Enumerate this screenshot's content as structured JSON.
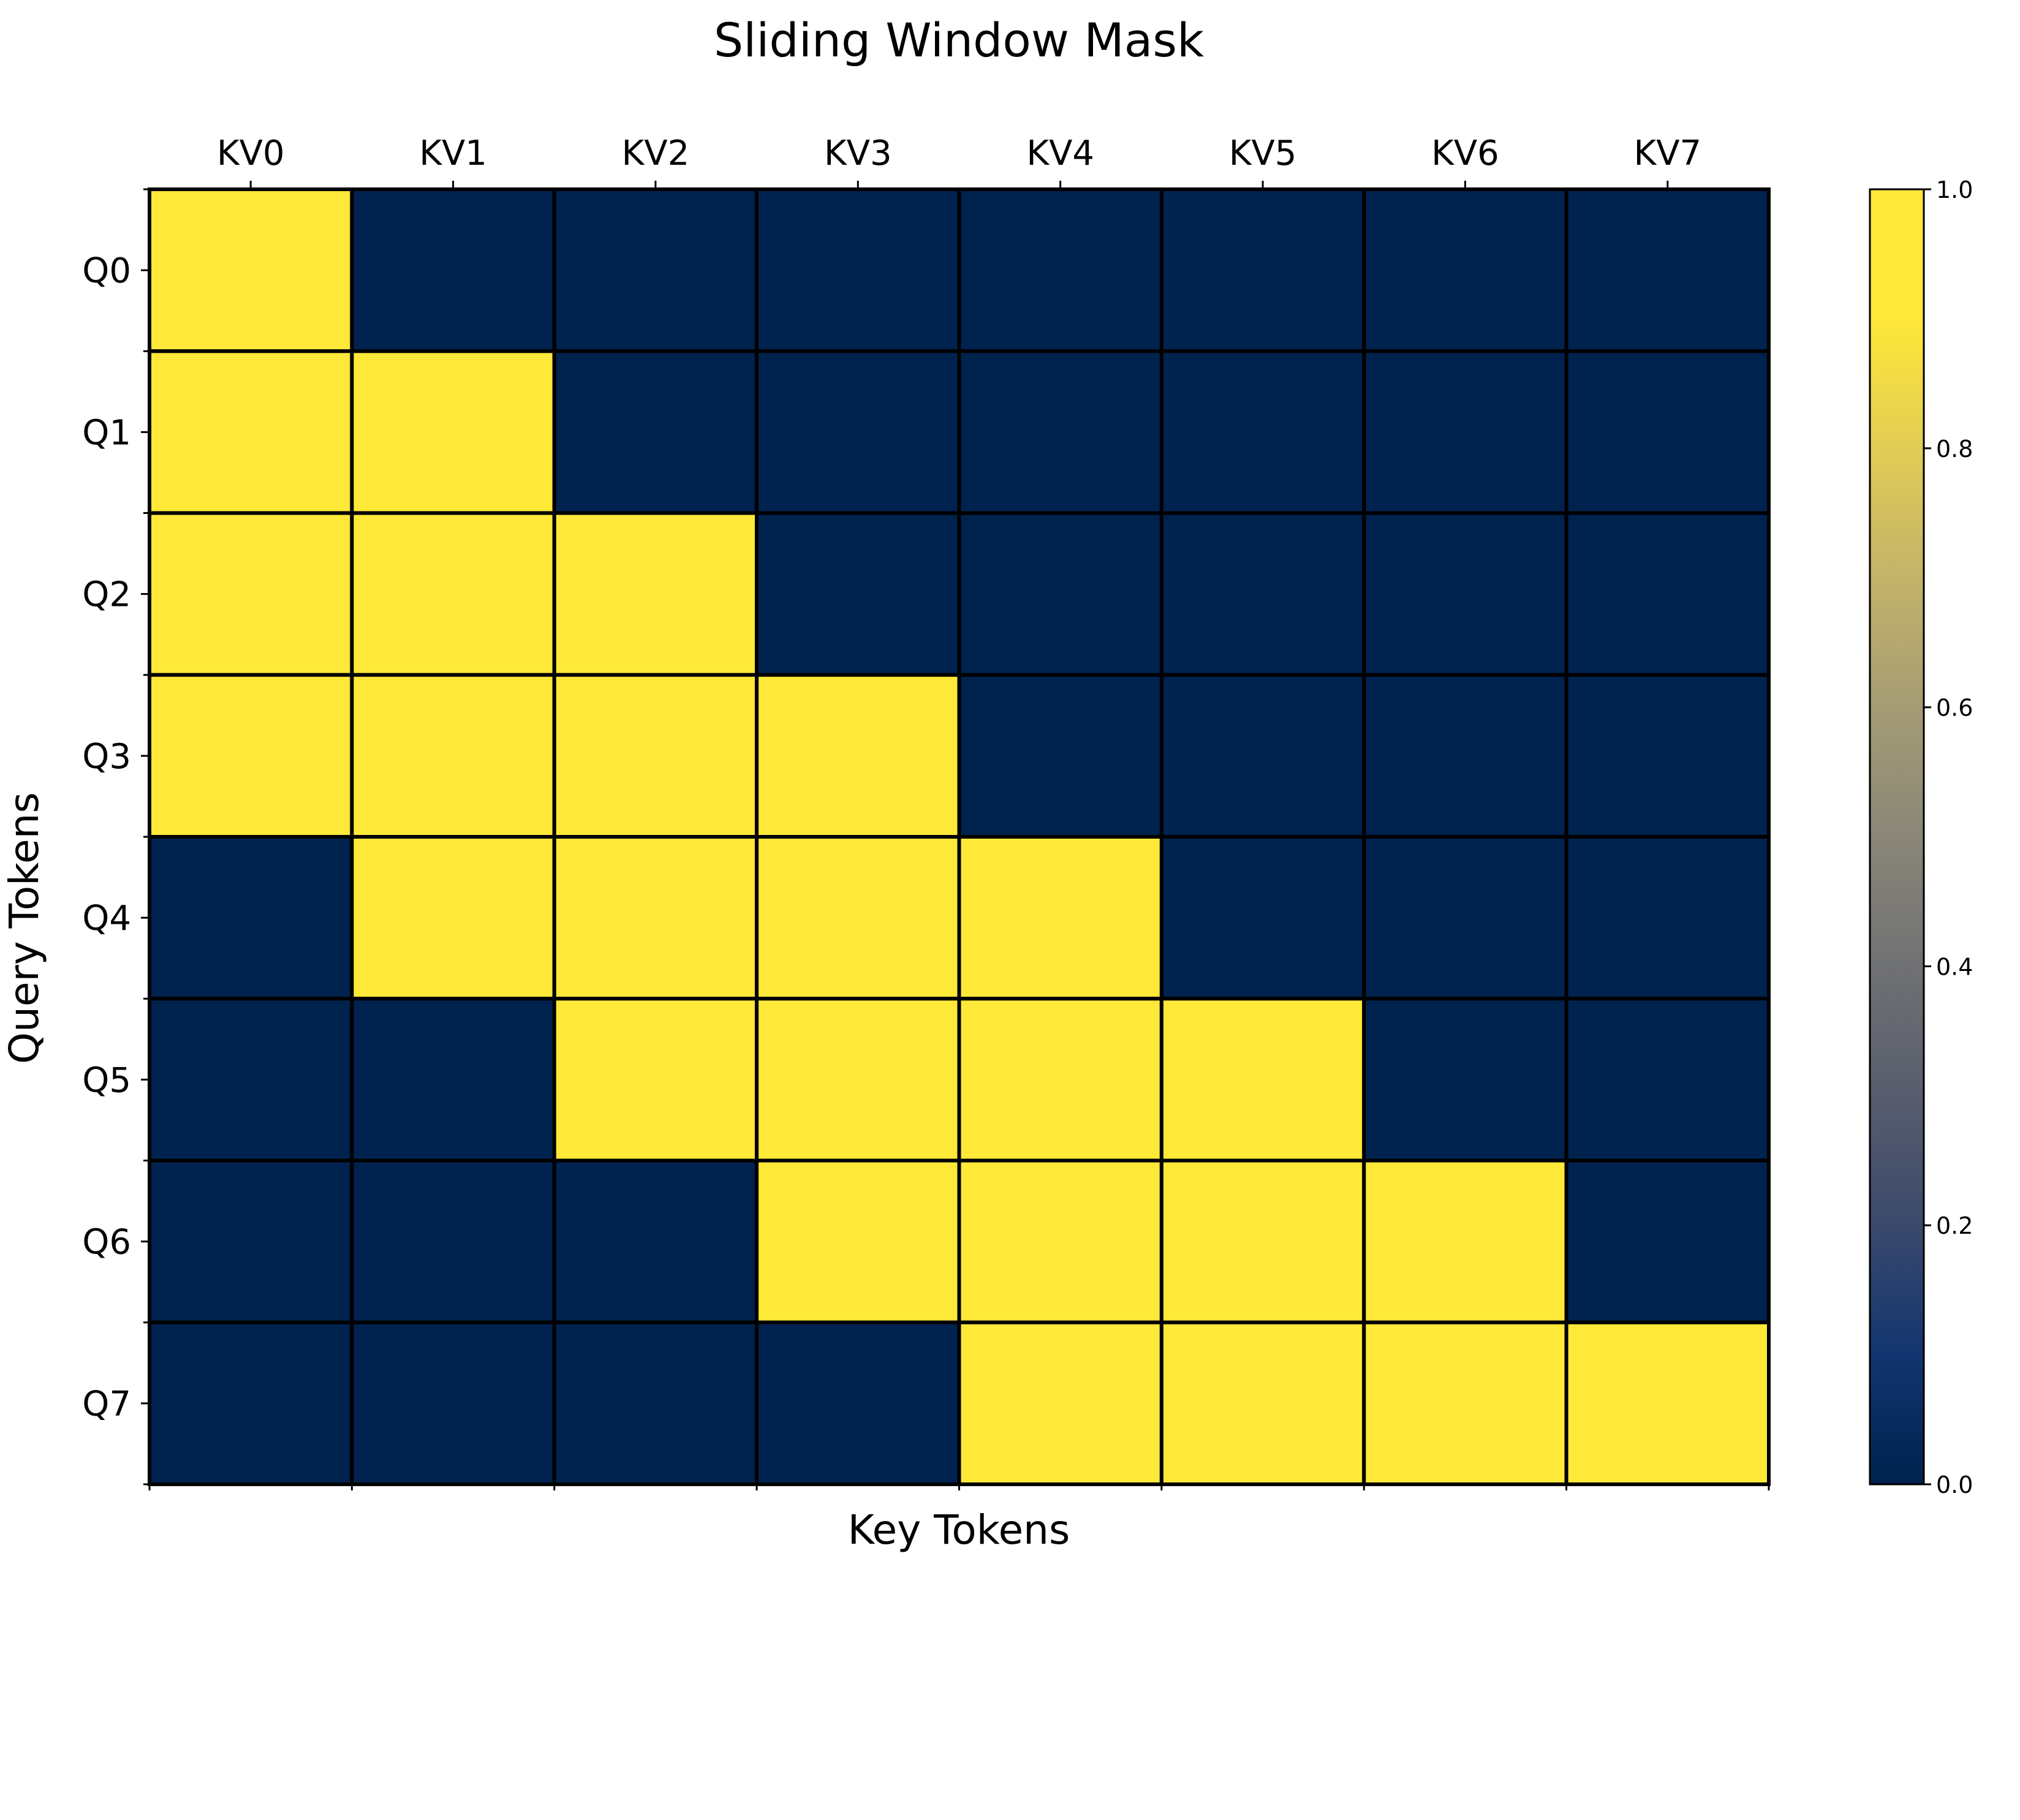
{
  "chart_data": {
    "type": "heatmap",
    "title": "Sliding Window Mask",
    "xlabel": "Key Tokens",
    "ylabel": "Query Tokens",
    "x_categories": [
      "KV0",
      "KV1",
      "KV2",
      "KV3",
      "KV4",
      "KV5",
      "KV6",
      "KV7"
    ],
    "y_categories": [
      "Q0",
      "Q1",
      "Q2",
      "Q3",
      "Q4",
      "Q5",
      "Q6",
      "Q7"
    ],
    "x_tick_position": "top",
    "values": [
      [
        1,
        0,
        0,
        0,
        0,
        0,
        0,
        0
      ],
      [
        1,
        1,
        0,
        0,
        0,
        0,
        0,
        0
      ],
      [
        1,
        1,
        1,
        0,
        0,
        0,
        0,
        0
      ],
      [
        1,
        1,
        1,
        1,
        0,
        0,
        0,
        0
      ],
      [
        0,
        1,
        1,
        1,
        1,
        0,
        0,
        0
      ],
      [
        0,
        0,
        1,
        1,
        1,
        1,
        0,
        0
      ],
      [
        0,
        0,
        0,
        1,
        1,
        1,
        1,
        0
      ],
      [
        0,
        0,
        0,
        0,
        1,
        1,
        1,
        1
      ]
    ],
    "colormap": {
      "name": "cividis",
      "stops": [
        {
          "value": 0.0,
          "color": "#00224e"
        },
        {
          "value": 0.1,
          "color": "#123570"
        },
        {
          "value": 0.2,
          "color": "#3b496c"
        },
        {
          "value": 0.3,
          "color": "#575d6d"
        },
        {
          "value": 0.4,
          "color": "#707173"
        },
        {
          "value": 0.5,
          "color": "#8a8678"
        },
        {
          "value": 0.6,
          "color": "#a59c74"
        },
        {
          "value": 0.7,
          "color": "#c3b369"
        },
        {
          "value": 0.8,
          "color": "#e1cc55"
        },
        {
          "value": 0.9,
          "color": "#fee838"
        },
        {
          "value": 1.0,
          "color": "#fee838"
        }
      ]
    },
    "colorbar": {
      "range": [
        0.0,
        1.0
      ],
      "ticks": [
        0.0,
        0.2,
        0.4,
        0.6,
        0.8,
        1.0
      ],
      "tick_labels": [
        "0.0",
        "0.2",
        "0.4",
        "0.6",
        "0.8",
        "1.0"
      ]
    },
    "cell_edge_color": "#000000"
  }
}
